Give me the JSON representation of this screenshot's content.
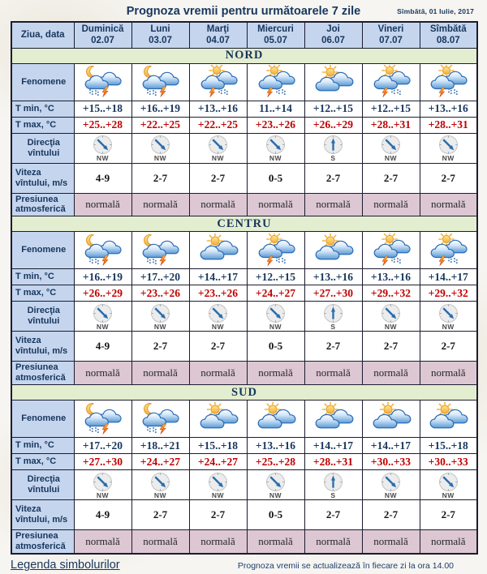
{
  "header": {
    "title": "Prognoza vremii pentru următoarele 7 zile",
    "date": "Sîmbătă, 01 Iulie, 2017"
  },
  "table": {
    "corner_label": "Ziua, data",
    "days": [
      {
        "name": "Duminică",
        "date": "02.07"
      },
      {
        "name": "Luni",
        "date": "03.07"
      },
      {
        "name": "Marţi",
        "date": "04.07"
      },
      {
        "name": "Miercuri",
        "date": "05.07"
      },
      {
        "name": "Joi",
        "date": "06.07"
      },
      {
        "name": "Vineri",
        "date": "07.07"
      },
      {
        "name": "Sîmbătă",
        "date": "08.07"
      }
    ],
    "row_labels": {
      "phenomena": "Fenomene",
      "tmin": "T min, °C",
      "tmax": "T max, °C",
      "wind_dir": "Direcţia vîntului",
      "wind_speed": "Viteza vîntului, m/s",
      "pressure": "Presiunea atmosferică"
    },
    "sections": [
      {
        "name": "NORD",
        "phenomena": [
          "night-storm",
          "night-storm",
          "day-storm",
          "day-storm",
          "day-cloudy",
          "day-storm",
          "day-storm"
        ],
        "tmin": [
          "+15..+18",
          "+16..+19",
          "+13..+16",
          "11..+14",
          "+12..+15",
          "+12..+15",
          "+13..+16"
        ],
        "tmax": [
          "+25..+28",
          "+22..+25",
          "+22..+25",
          "+23..+26",
          "+26..+29",
          "+28..+31",
          "+28..+31"
        ],
        "wind_dir": [
          "NW",
          "NW",
          "NW",
          "NW",
          "S",
          "NW",
          "NW"
        ],
        "wind_speed": [
          "4-9",
          "2-7",
          "2-7",
          "0-5",
          "2-7",
          "2-7",
          "2-7"
        ],
        "pressure": [
          "normală",
          "normală",
          "normală",
          "normală",
          "normală",
          "normală",
          "normală"
        ]
      },
      {
        "name": "CENTRU",
        "phenomena": [
          "night-storm",
          "night-storm",
          "day-cloudy",
          "day-storm",
          "day-cloudy",
          "day-storm",
          "day-storm"
        ],
        "tmin": [
          "+16..+19",
          "+17..+20",
          "+14..+17",
          "+12..+15",
          "+13..+16",
          "+13..+16",
          "+14..+17"
        ],
        "tmax": [
          "+26..+29",
          "+23..+26",
          "+23..+26",
          "+24..+27",
          "+27..+30",
          "+29..+32",
          "+29..+32"
        ],
        "wind_dir": [
          "NW",
          "NW",
          "NW",
          "NW",
          "S",
          "NW",
          "NW"
        ],
        "wind_speed": [
          "4-9",
          "2-7",
          "2-7",
          "0-5",
          "2-7",
          "2-7",
          "2-7"
        ],
        "pressure": [
          "normală",
          "normală",
          "normală",
          "normală",
          "normală",
          "normală",
          "normală"
        ]
      },
      {
        "name": "SUD",
        "phenomena": [
          "night-storm",
          "night-storm",
          "day-cloudy",
          "day-cloudy",
          "day-cloudy",
          "day-cloudy",
          "day-cloudy"
        ],
        "tmin": [
          "+17..+20",
          "+18..+21",
          "+15..+18",
          "+13..+16",
          "+14..+17",
          "+14..+17",
          "+15..+18"
        ],
        "tmax": [
          "+27..+30",
          "+24..+27",
          "+24..+27",
          "+25..+28",
          "+28..+31",
          "+30..+33",
          "+30..+33"
        ],
        "wind_dir": [
          "NW",
          "NW",
          "NW",
          "NW",
          "S",
          "NW",
          "NW"
        ],
        "wind_speed": [
          "4-9",
          "2-7",
          "2-7",
          "0-5",
          "2-7",
          "2-7",
          "2-7"
        ],
        "pressure": [
          "normală",
          "normală",
          "normală",
          "normală",
          "normală",
          "normală",
          "normală"
        ]
      }
    ]
  },
  "footer": {
    "legend_link": "Legenda simbolurilor",
    "update_note": "Prognoza vremii se actualizează în fiecare zi la ora 14.00"
  },
  "icons": {
    "night-storm": "moon-clouds-rain-lightning-icon",
    "day-storm": "sun-clouds-rain-lightning-icon",
    "day-cloudy": "sun-clouds-icon",
    "NW": "compass-arrow-nw-icon",
    "S": "compass-arrow-s-icon"
  },
  "colors": {
    "navy": "#17365d",
    "red": "#c00000",
    "header_bg": "#c5d5ee",
    "section_bg": "#e3edcf",
    "pressure_bg": "#dcc7d3",
    "grid": "#1c1c30",
    "page_bg": "#f6f5f1"
  }
}
